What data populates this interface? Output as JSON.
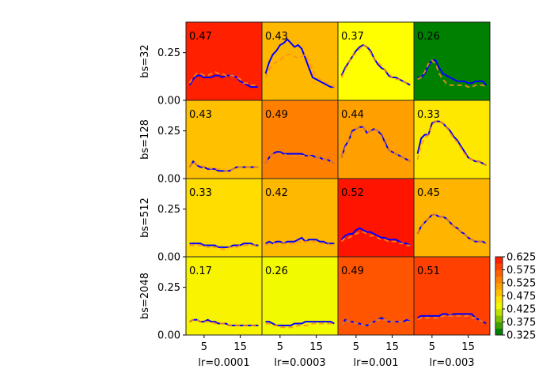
{
  "chart_data": {
    "type": "line",
    "layout": "grid 4x4 small multiples",
    "row_labels": [
      "bs=32",
      "bs=128",
      "bs=512",
      "bs=2048"
    ],
    "col_labels": [
      "lr=0.0001",
      "lr=0.0003",
      "lr=0.001",
      "lr=0.003"
    ],
    "yticks": [
      "0.00",
      "0.25"
    ],
    "ytick_values": [
      0,
      0.25
    ],
    "xticks": [
      "5",
      "15"
    ],
    "xtick_values": [
      5,
      15
    ],
    "xlim": [
      0,
      21
    ],
    "ylim": [
      0,
      0.41
    ],
    "x": [
      1,
      2,
      3,
      4,
      5,
      6,
      7,
      8,
      9,
      10,
      11,
      12,
      13,
      14,
      15,
      16,
      17,
      18,
      19,
      20
    ],
    "series_styles": [
      {
        "color": "#0000ff",
        "style": "solid"
      },
      {
        "color": "#ff8c1a",
        "style": "dashed"
      }
    ],
    "panels": [
      [
        {
          "label": "0.47",
          "bg": "#ff2000",
          "solid": [
            0.08,
            0.11,
            0.13,
            0.13,
            0.12,
            0.12,
            0.12,
            0.13,
            0.13,
            0.12,
            0.13,
            0.13,
            0.13,
            0.12,
            0.1,
            0.09,
            0.08,
            0.07,
            0.07,
            0.07
          ],
          "dashed": [
            0.09,
            0.12,
            0.14,
            0.14,
            0.13,
            0.13,
            0.14,
            0.15,
            0.14,
            0.14,
            0.13,
            0.13,
            0.13,
            0.12,
            0.11,
            0.09,
            0.09,
            0.08,
            0.08,
            0.07
          ]
        },
        {
          "label": "0.43",
          "bg": "#ffb800",
          "solid": [
            0.14,
            0.2,
            0.24,
            0.26,
            0.29,
            0.3,
            0.32,
            0.3,
            0.28,
            0.29,
            0.27,
            0.22,
            0.17,
            0.12,
            0.11,
            0.1,
            0.09,
            0.08,
            0.07,
            0.07
          ],
          "dashed": [
            0.12,
            0.16,
            0.19,
            0.2,
            0.21,
            0.23,
            0.24,
            0.24,
            0.23,
            0.22,
            0.23,
            0.24,
            0.2,
            0.16,
            0.12,
            0.11,
            0.1,
            0.09,
            0.08,
            0.07
          ]
        },
        {
          "label": "0.37",
          "bg": "#ffff00",
          "solid": [
            0.13,
            0.17,
            0.2,
            0.23,
            0.26,
            0.28,
            0.29,
            0.28,
            0.26,
            0.22,
            0.19,
            0.17,
            0.16,
            0.13,
            0.12,
            0.12,
            0.11,
            0.1,
            0.09,
            0.08
          ],
          "dashed": [
            0.12,
            0.16,
            0.2,
            0.23,
            0.25,
            0.27,
            0.29,
            0.28,
            0.25,
            0.22,
            0.2,
            0.18,
            0.16,
            0.14,
            0.12,
            0.11,
            0.11,
            0.1,
            0.09,
            0.08
          ]
        },
        {
          "label": "0.26",
          "bg": "#008000",
          "solid": [
            0.12,
            0.12,
            0.14,
            0.18,
            0.21,
            0.21,
            0.17,
            0.14,
            0.13,
            0.12,
            0.11,
            0.1,
            0.1,
            0.1,
            0.09,
            0.09,
            0.1,
            0.1,
            0.1,
            0.08
          ],
          "dashed": [
            0.11,
            0.12,
            0.15,
            0.19,
            0.21,
            0.19,
            0.14,
            0.11,
            0.09,
            0.08,
            0.08,
            0.08,
            0.08,
            0.08,
            0.07,
            0.07,
            0.08,
            0.08,
            0.08,
            0.07
          ]
        }
      ],
      [
        {
          "label": "0.43",
          "bg": "#ffc000",
          "solid": [
            0.06,
            0.09,
            0.07,
            0.06,
            0.06,
            0.05,
            0.05,
            0.05,
            0.04,
            0.04,
            0.04,
            0.04,
            0.05,
            0.06,
            0.06,
            0.06,
            0.06,
            0.06,
            0.06,
            0.06
          ],
          "dashed": [
            0.06,
            0.09,
            0.07,
            0.07,
            0.06,
            0.06,
            0.05,
            0.05,
            0.05,
            0.05,
            0.04,
            0.04,
            0.05,
            0.06,
            0.06,
            0.06,
            0.06,
            0.06,
            0.06,
            0.06
          ]
        },
        {
          "label": "0.49",
          "bg": "#ff8000",
          "solid": [
            0.08,
            0.11,
            0.13,
            0.14,
            0.14,
            0.13,
            0.13,
            0.13,
            0.13,
            0.13,
            0.13,
            0.12,
            0.12,
            0.12,
            0.11,
            0.11,
            0.1,
            0.1,
            0.09,
            0.08
          ],
          "dashed": [
            0.08,
            0.11,
            0.13,
            0.13,
            0.13,
            0.13,
            0.12,
            0.12,
            0.12,
            0.12,
            0.12,
            0.12,
            0.12,
            0.11,
            0.11,
            0.11,
            0.1,
            0.1,
            0.09,
            0.08
          ]
        },
        {
          "label": "0.44",
          "bg": "#ffa000",
          "solid": [
            0.11,
            0.17,
            0.2,
            0.25,
            0.26,
            0.27,
            0.27,
            0.24,
            0.25,
            0.26,
            0.25,
            0.23,
            0.19,
            0.15,
            0.14,
            0.13,
            0.12,
            0.11,
            0.1,
            0.09
          ],
          "dashed": [
            0.11,
            0.16,
            0.2,
            0.24,
            0.26,
            0.27,
            0.27,
            0.24,
            0.25,
            0.26,
            0.25,
            0.22,
            0.18,
            0.15,
            0.14,
            0.13,
            0.12,
            0.11,
            0.1,
            0.09
          ]
        },
        {
          "label": "0.33",
          "bg": "#ffe800",
          "solid": [
            0.13,
            0.21,
            0.23,
            0.23,
            0.29,
            0.3,
            0.3,
            0.29,
            0.27,
            0.25,
            0.22,
            0.2,
            0.17,
            0.14,
            0.11,
            0.1,
            0.09,
            0.09,
            0.08,
            0.07
          ],
          "dashed": [
            0.1,
            0.18,
            0.21,
            0.23,
            0.28,
            0.3,
            0.3,
            0.29,
            0.27,
            0.24,
            0.21,
            0.19,
            0.16,
            0.13,
            0.11,
            0.1,
            0.09,
            0.09,
            0.08,
            0.07
          ]
        }
      ],
      [
        {
          "label": "0.33",
          "bg": "#ffdd00",
          "solid": [
            0.07,
            0.07,
            0.07,
            0.07,
            0.06,
            0.06,
            0.06,
            0.06,
            0.05,
            0.05,
            0.05,
            0.05,
            0.06,
            0.06,
            0.06,
            0.07,
            0.07,
            0.07,
            0.06,
            0.06
          ],
          "dashed": [
            0.06,
            0.06,
            0.06,
            0.06,
            0.06,
            0.05,
            0.05,
            0.05,
            0.05,
            0.04,
            0.04,
            0.05,
            0.05,
            0.05,
            0.06,
            0.06,
            0.06,
            0.06,
            0.06,
            0.05
          ]
        },
        {
          "label": "0.42",
          "bg": "#ffb800",
          "solid": [
            0.07,
            0.08,
            0.07,
            0.08,
            0.08,
            0.07,
            0.08,
            0.08,
            0.08,
            0.09,
            0.1,
            0.08,
            0.09,
            0.09,
            0.09,
            0.08,
            0.08,
            0.07,
            0.07,
            0.07
          ],
          "dashed": [
            0.06,
            0.07,
            0.07,
            0.07,
            0.07,
            0.07,
            0.07,
            0.07,
            0.07,
            0.08,
            0.08,
            0.08,
            0.08,
            0.08,
            0.08,
            0.07,
            0.07,
            0.07,
            0.06,
            0.06
          ]
        },
        {
          "label": "0.52",
          "bg": "#ff1400",
          "solid": [
            0.09,
            0.11,
            0.12,
            0.12,
            0.14,
            0.15,
            0.14,
            0.13,
            0.13,
            0.12,
            0.11,
            0.1,
            0.1,
            0.09,
            0.09,
            0.09,
            0.08,
            0.07,
            0.07,
            0.06
          ],
          "dashed": [
            0.08,
            0.1,
            0.1,
            0.11,
            0.12,
            0.13,
            0.13,
            0.12,
            0.11,
            0.11,
            0.1,
            0.09,
            0.09,
            0.08,
            0.08,
            0.08,
            0.07,
            0.07,
            0.06,
            0.06
          ]
        },
        {
          "label": "0.45",
          "bg": "#ffb400",
          "solid": [
            0.12,
            0.16,
            0.18,
            0.2,
            0.22,
            0.22,
            0.21,
            0.21,
            0.2,
            0.18,
            0.16,
            0.15,
            0.13,
            0.12,
            0.1,
            0.09,
            0.08,
            0.08,
            0.08,
            0.07
          ],
          "dashed": [
            0.12,
            0.16,
            0.18,
            0.2,
            0.22,
            0.22,
            0.21,
            0.21,
            0.2,
            0.18,
            0.16,
            0.15,
            0.13,
            0.12,
            0.1,
            0.09,
            0.08,
            0.08,
            0.08,
            0.07
          ]
        }
      ],
      [
        {
          "label": "0.17",
          "bg": "#f8f400",
          "solid": [
            0.07,
            0.08,
            0.08,
            0.07,
            0.07,
            0.08,
            0.07,
            0.07,
            0.06,
            0.06,
            0.06,
            0.05,
            0.05,
            0.05,
            0.05,
            0.05,
            0.05,
            0.05,
            0.05,
            0.05
          ],
          "dashed": [
            0.07,
            0.08,
            0.08,
            0.07,
            0.07,
            0.07,
            0.07,
            0.06,
            0.06,
            0.06,
            0.06,
            0.05,
            0.05,
            0.05,
            0.05,
            0.05,
            0.05,
            0.05,
            0.05,
            0.04
          ]
        },
        {
          "label": "0.26",
          "bg": "#f2fa00",
          "solid": [
            0.07,
            0.07,
            0.06,
            0.05,
            0.05,
            0.05,
            0.05,
            0.05,
            0.06,
            0.06,
            0.06,
            0.07,
            0.07,
            0.07,
            0.07,
            0.07,
            0.07,
            0.07,
            0.07,
            0.06
          ],
          "dashed": [
            0.06,
            0.06,
            0.05,
            0.05,
            0.04,
            0.04,
            0.04,
            0.04,
            0.04,
            0.05,
            0.05,
            0.05,
            0.05,
            0.06,
            0.06,
            0.06,
            0.06,
            0.06,
            0.06,
            0.06
          ]
        },
        {
          "label": "0.49",
          "bg": "#ff5500",
          "solid": [
            0.05,
            0.08,
            0.07,
            0.07,
            0.06,
            0.06,
            0.05,
            0.05,
            0.06,
            0.07,
            0.08,
            0.09,
            0.08,
            0.07,
            0.07,
            0.07,
            0.07,
            0.07,
            0.08,
            0.07
          ],
          "dashed": [
            0.05,
            0.08,
            0.07,
            0.07,
            0.06,
            0.06,
            0.05,
            0.05,
            0.06,
            0.07,
            0.08,
            0.08,
            0.08,
            0.07,
            0.07,
            0.07,
            0.07,
            0.07,
            0.07,
            0.07
          ]
        },
        {
          "label": "0.51",
          "bg": "#ff4000",
          "solid": [
            0.09,
            0.1,
            0.1,
            0.1,
            0.1,
            0.1,
            0.1,
            0.11,
            0.11,
            0.1,
            0.11,
            0.11,
            0.11,
            0.11,
            0.11,
            0.11,
            0.09,
            0.08,
            0.07,
            0.06
          ],
          "dashed": [
            0.08,
            0.09,
            0.09,
            0.09,
            0.09,
            0.09,
            0.09,
            0.1,
            0.1,
            0.1,
            0.1,
            0.1,
            0.1,
            0.1,
            0.1,
            0.09,
            0.09,
            0.08,
            0.07,
            0.06
          ]
        }
      ]
    ],
    "colorbar": {
      "ticks": [
        "0.625",
        "0.575",
        "0.525",
        "0.475",
        "0.425",
        "0.375",
        "0.325"
      ],
      "range": [
        0.325,
        0.625
      ],
      "colors": [
        "#008000",
        "#40a000",
        "#80c000",
        "#c0e000",
        "#eef800",
        "#ffe000",
        "#ffc000",
        "#ffa000",
        "#ff8000",
        "#ff6000",
        "#ff4000",
        "#ff2000"
      ]
    }
  }
}
